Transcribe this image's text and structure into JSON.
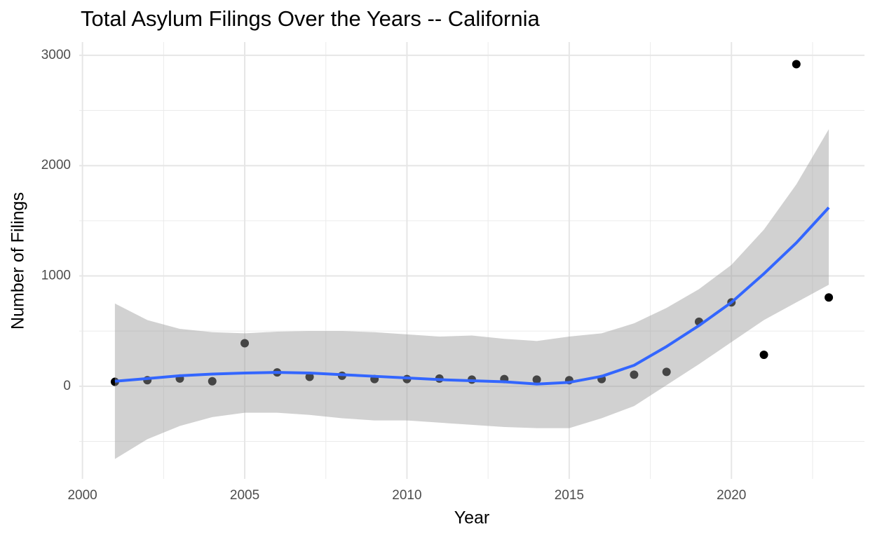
{
  "chart_data": {
    "type": "scatter",
    "title": "Total Asylum Filings Over the Years -- California",
    "x_label": "Year",
    "y_label": "Number of Filings",
    "x": [
      2001,
      2002,
      2003,
      2004,
      2005,
      2006,
      2007,
      2008,
      2009,
      2010,
      2011,
      2012,
      2013,
      2014,
      2015,
      2016,
      2017,
      2018,
      2019,
      2020,
      2021,
      2022,
      2023
    ],
    "values": [
      40,
      55,
      70,
      45,
      390,
      125,
      85,
      95,
      65,
      65,
      70,
      60,
      65,
      60,
      55,
      65,
      105,
      130,
      585,
      760,
      285,
      2920,
      805
    ],
    "color": "#000000",
    "smooth": {
      "color": "#3366ff",
      "band_color": "#999999",
      "values": [
        45,
        70,
        95,
        110,
        120,
        125,
        120,
        105,
        90,
        75,
        60,
        50,
        40,
        20,
        35,
        90,
        190,
        360,
        550,
        760,
        1020,
        1300,
        1620
      ],
      "lower": [
        -660,
        -480,
        -360,
        -280,
        -240,
        -240,
        -260,
        -290,
        -310,
        -310,
        -330,
        -350,
        -370,
        -380,
        -380,
        -290,
        -180,
        10,
        200,
        400,
        600,
        760,
        920
      ],
      "upper": [
        750,
        600,
        520,
        490,
        480,
        495,
        500,
        500,
        490,
        470,
        450,
        460,
        430,
        410,
        450,
        480,
        570,
        710,
        880,
        1100,
        1420,
        1830,
        2330
      ]
    },
    "xlim": [
      1999.9,
      2024.1
    ],
    "xticks": [
      2000,
      2005,
      2010,
      2015,
      2020
    ],
    "xminor": [
      2002.5,
      2007.5,
      2012.5,
      2017.5,
      2022.5
    ],
    "ylim": [
      -840,
      3120
    ],
    "yticks": [
      0,
      1000,
      2000,
      3000
    ],
    "yminor": [
      -500,
      500,
      1500,
      2500
    ],
    "grid": true
  }
}
